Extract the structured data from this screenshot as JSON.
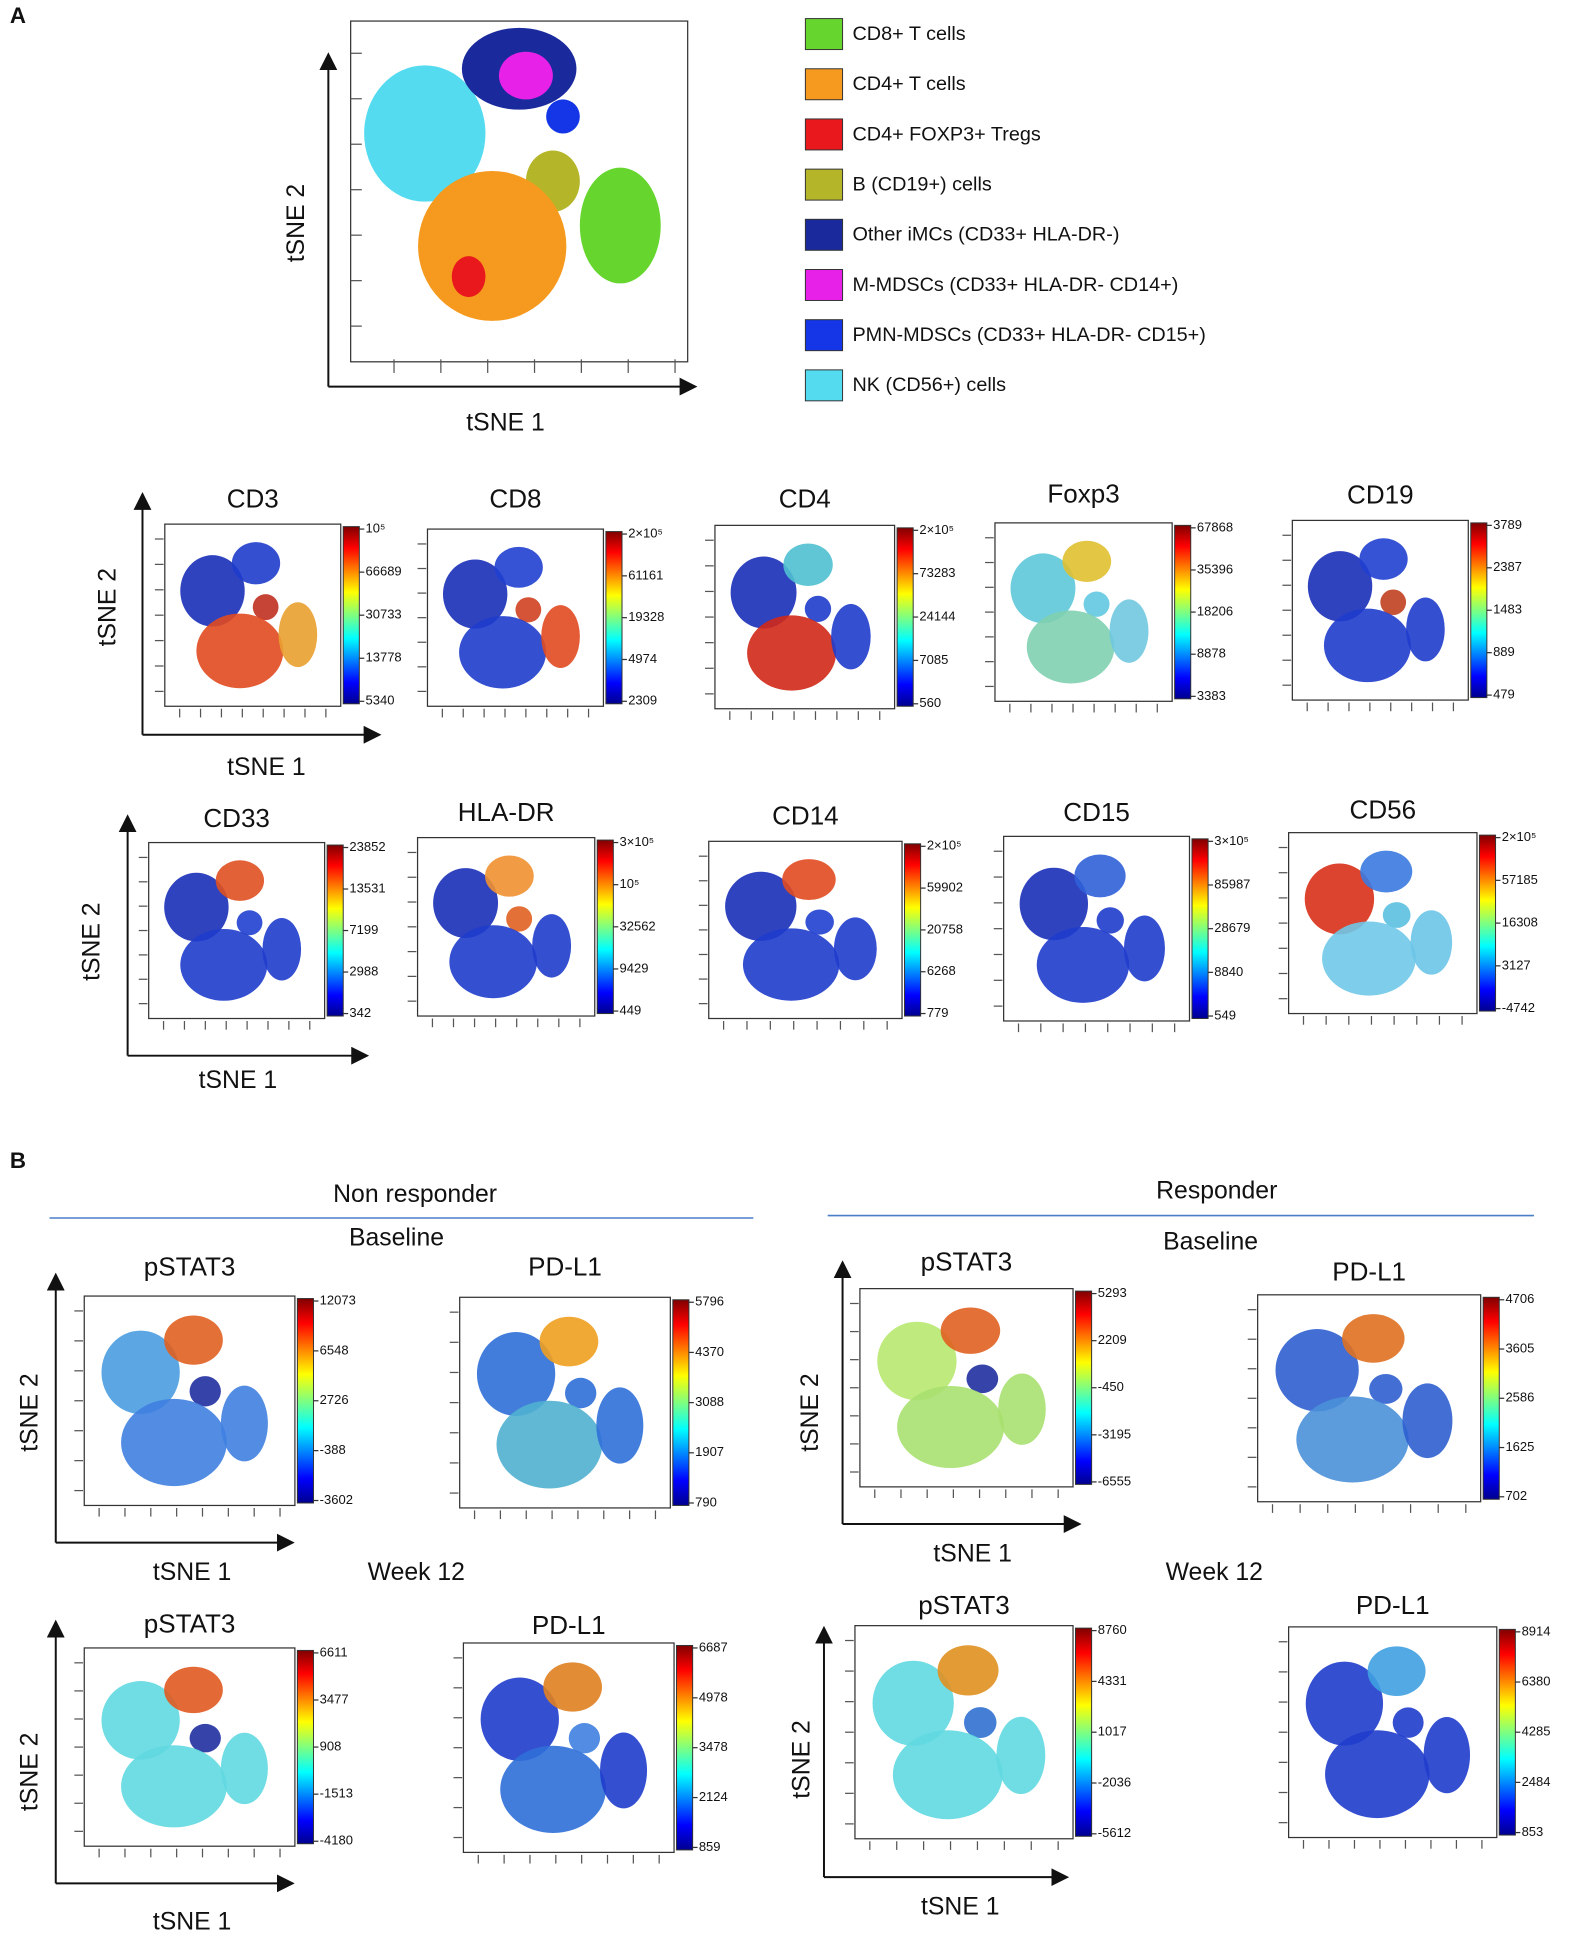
{
  "panel_a": {
    "label": "A",
    "overview": {
      "x_label": "tSNE 1",
      "y_label": "tSNE 2"
    },
    "legend": [
      {
        "name": "CD8+ T cells",
        "color": "#66d62e"
      },
      {
        "name": "CD4+ T cells",
        "color": "#f59a1e"
      },
      {
        "name": "CD4+ FOXP3+ Tregs",
        "color": "#e8181c"
      },
      {
        "name": "B (CD19+) cells",
        "color": "#b5b52a"
      },
      {
        "name": "Other iMCs (CD33+ HLA-DR-)",
        "color": "#1a2a9c"
      },
      {
        "name": "M-MDSCs (CD33+ HLA-DR- CD14+)",
        "color": "#e821e8"
      },
      {
        "name": "PMN-MDSCs (CD33+ HLA-DR- CD15+)",
        "color": "#1436e6"
      },
      {
        "name": "NK (CD56+) cells",
        "color": "#55dbf0"
      }
    ],
    "rows": [
      {
        "x_label": "tSNE 1",
        "y_label": "tSNE 2",
        "plots": [
          {
            "title": "CD3",
            "ticks": [
              "10⁵",
              "66689",
              "30733",
              "13778",
              "5340"
            ]
          },
          {
            "title": "CD8",
            "ticks": [
              "2×10⁵",
              "61161",
              "19328",
              "4974",
              "2309"
            ]
          },
          {
            "title": "CD4",
            "ticks": [
              "2×10⁵",
              "73283",
              "24144",
              "7085",
              "560"
            ]
          },
          {
            "title": "Foxp3",
            "ticks": [
              "67868",
              "35396",
              "18206",
              "8878",
              "3383"
            ]
          },
          {
            "title": "CD19",
            "ticks": [
              "3789",
              "2387",
              "1483",
              "889",
              "479"
            ]
          }
        ]
      },
      {
        "x_label": "tSNE 1",
        "y_label": "tSNE 2",
        "plots": [
          {
            "title": "CD33",
            "ticks": [
              "23852",
              "13531",
              "7199",
              "2988",
              "342"
            ]
          },
          {
            "title": "HLA-DR",
            "ticks": [
              "3×10⁵",
              "10⁵",
              "32562",
              "9429",
              "449"
            ]
          },
          {
            "title": "CD14",
            "ticks": [
              "2×10⁵",
              "59902",
              "20758",
              "6268",
              "779"
            ]
          },
          {
            "title": "CD15",
            "ticks": [
              "3×10⁵",
              "85987",
              "28679",
              "8840",
              "549"
            ]
          },
          {
            "title": "CD56",
            "ticks": [
              "2×10⁵",
              "57185",
              "16308",
              "3127",
              "-4742"
            ]
          }
        ]
      }
    ]
  },
  "panel_b": {
    "label": "B",
    "groups": [
      {
        "name": "Non responder",
        "sections": [
          {
            "label": "Baseline",
            "x_label": "tSNE 1",
            "y_label": "tSNE 2",
            "plots": [
              {
                "title": "pSTAT3",
                "ticks": [
                  "12073",
                  "6548",
                  "2726",
                  "-388",
                  "-3602"
                ]
              },
              {
                "title": "PD-L1",
                "ticks": [
                  "5796",
                  "4370",
                  "3088",
                  "1907",
                  "790"
                ]
              }
            ]
          },
          {
            "label": "Week 12",
            "x_label": "tSNE 1",
            "y_label": "tSNE 2",
            "plots": [
              {
                "title": "pSTAT3",
                "ticks": [
                  "6611",
                  "3477",
                  "908",
                  "-1513",
                  "-4180"
                ]
              },
              {
                "title": "PD-L1",
                "ticks": [
                  "6687",
                  "4978",
                  "3478",
                  "2124",
                  "859"
                ]
              }
            ]
          }
        ]
      },
      {
        "name": "Responder",
        "sections": [
          {
            "label": "Baseline",
            "x_label": "tSNE 1",
            "y_label": "tSNE 2",
            "plots": [
              {
                "title": "pSTAT3",
                "ticks": [
                  "5293",
                  "2209",
                  "-450",
                  "-3195",
                  "-6555"
                ]
              },
              {
                "title": "PD-L1",
                "ticks": [
                  "4706",
                  "3605",
                  "2586",
                  "1625",
                  "702"
                ]
              }
            ]
          },
          {
            "label": "Week 12",
            "x_label": "tSNE 1",
            "y_label": "tSNE 2",
            "plots": [
              {
                "title": "pSTAT3",
                "ticks": [
                  "8760",
                  "4331",
                  "1017",
                  "-2036",
                  "-5612"
                ]
              },
              {
                "title": "PD-L1",
                "ticks": [
                  "8914",
                  "6380",
                  "4285",
                  "2484",
                  "853"
                ]
              }
            ]
          }
        ]
      }
    ]
  }
}
